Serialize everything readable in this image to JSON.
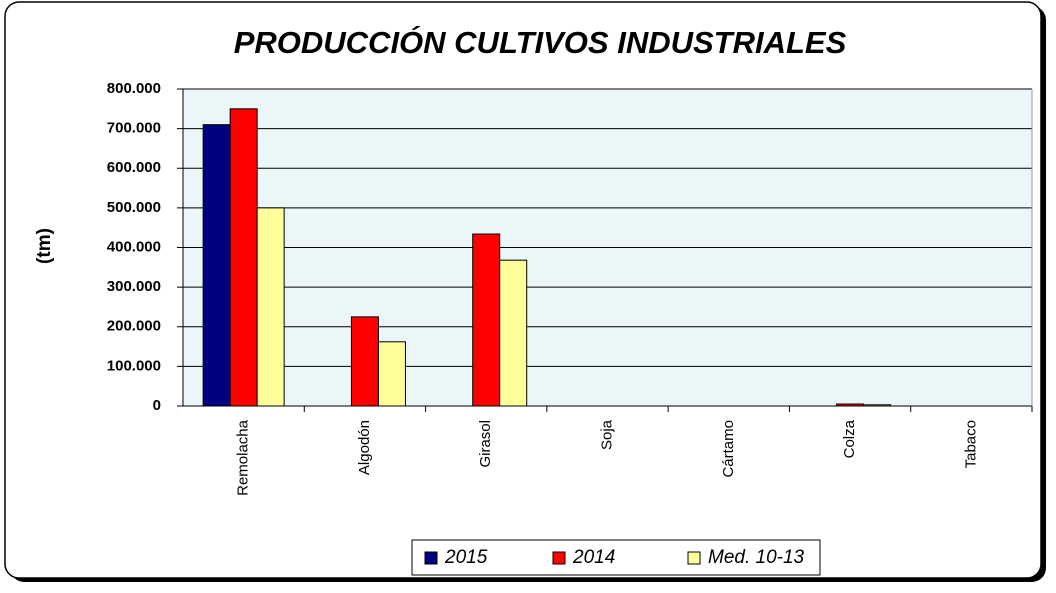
{
  "chart_data": {
    "type": "bar",
    "title": "PRODUCCIÓN CULTIVOS INDUSTRIALES",
    "y_label": "(tm)",
    "categories": [
      "Remolacha",
      "Algodón",
      "Girasol",
      "Soja",
      "Cártamo",
      "Colza",
      "Tabaco"
    ],
    "series": [
      {
        "name": "2015",
        "color": "#000080",
        "values": [
          710000,
          0,
          0,
          0,
          0,
          0,
          0
        ]
      },
      {
        "name": "2014",
        "color": "#ff0000",
        "values": [
          750000,
          225000,
          434000,
          0,
          0,
          5000,
          0
        ]
      },
      {
        "name": "Med. 10-13",
        "color": "#ffff99",
        "values": [
          500000,
          162000,
          368000,
          0,
          0,
          3000,
          0
        ]
      }
    ],
    "ylim": [
      0,
      800000
    ],
    "yticks": [
      0,
      {
        "value": 100000,
        "label": "100.000"
      },
      {
        "value": 200000,
        "label": "200.000"
      },
      {
        "value": 300000,
        "label": "300.000"
      },
      {
        "value": 400000,
        "label": "400.000"
      },
      {
        "value": 500000,
        "label": "500.000"
      },
      {
        "value": 600000,
        "label": "600.000"
      },
      {
        "value": 700000,
        "label": "700.000"
      },
      {
        "value": 800000,
        "label": "800.000"
      }
    ],
    "grid": true
  }
}
